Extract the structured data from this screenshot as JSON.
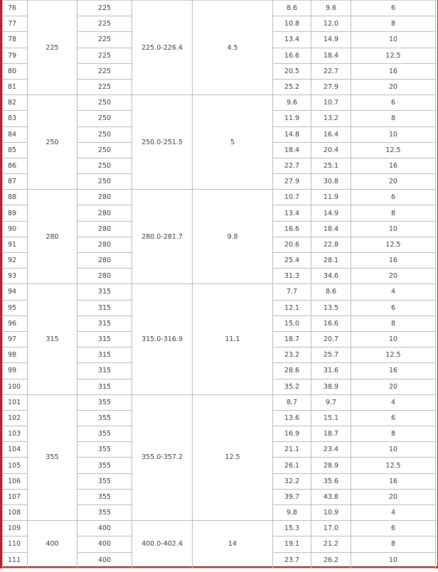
{
  "groups": [
    {
      "dn": "225",
      "range": "225.0-226.4",
      "col5": "4.5",
      "rows": [
        {
          "no": "76",
          "dn": "225",
          "a": "8.6",
          "b": "9.6",
          "c": "6"
        },
        {
          "no": "77",
          "dn": "225",
          "a": "10.8",
          "b": "12.0",
          "c": "8"
        },
        {
          "no": "78",
          "dn": "225",
          "a": "13.4",
          "b": "14.9",
          "c": "10"
        },
        {
          "no": "79",
          "dn": "225",
          "a": "16.6",
          "b": "18.4",
          "c": "12.5"
        },
        {
          "no": "80",
          "dn": "225",
          "a": "20.5",
          "b": "22.7",
          "c": "16"
        },
        {
          "no": "81",
          "dn": "225",
          "a": "25.2",
          "b": "27.9",
          "c": "20"
        }
      ]
    },
    {
      "dn": "250",
      "range": "250.0-251.5",
      "col5": "5",
      "rows": [
        {
          "no": "82",
          "dn": "250",
          "a": "9.6",
          "b": "10.7",
          "c": "6"
        },
        {
          "no": "83",
          "dn": "250",
          "a": "11.9",
          "b": "13.2",
          "c": "8"
        },
        {
          "no": "84",
          "dn": "250",
          "a": "14.8",
          "b": "16.4",
          "c": "10"
        },
        {
          "no": "85",
          "dn": "250",
          "a": "18.4",
          "b": "20.4",
          "c": "12.5"
        },
        {
          "no": "86",
          "dn": "250",
          "a": "22.7",
          "b": "25.1",
          "c": "16"
        },
        {
          "no": "87",
          "dn": "250",
          "a": "27.9",
          "b": "30.8",
          "c": "20"
        }
      ]
    },
    {
      "dn": "280",
      "range": "280.0-281.7",
      "col5": "9.8",
      "rows": [
        {
          "no": "88",
          "dn": "280",
          "a": "10.7",
          "b": "11.9",
          "c": "6"
        },
        {
          "no": "89",
          "dn": "280",
          "a": "13.4",
          "b": "14.9",
          "c": "8"
        },
        {
          "no": "90",
          "dn": "280",
          "a": "16.6",
          "b": "18.4",
          "c": "10"
        },
        {
          "no": "91",
          "dn": "280",
          "a": "20.6",
          "b": "22.8",
          "c": "12.5"
        },
        {
          "no": "92",
          "dn": "280",
          "a": "25.4",
          "b": "28.1",
          "c": "16"
        },
        {
          "no": "93",
          "dn": "280",
          "a": "31.3",
          "b": "34.6",
          "c": "20"
        }
      ]
    },
    {
      "dn": "315",
      "range": "315.0-316.9",
      "col5": "11.1",
      "rows": [
        {
          "no": "94",
          "dn": "315",
          "a": "7.7",
          "b": "8.6",
          "c": "4"
        },
        {
          "no": "95",
          "dn": "315",
          "a": "12.1",
          "b": "13.5",
          "c": "6"
        },
        {
          "no": "96",
          "dn": "315",
          "a": "15.0",
          "b": "16.6",
          "c": "8"
        },
        {
          "no": "97",
          "dn": "315",
          "a": "18.7",
          "b": "20.7",
          "c": "10"
        },
        {
          "no": "98",
          "dn": "315",
          "a": "23.2",
          "b": "25.7",
          "c": "12.5"
        },
        {
          "no": "99",
          "dn": "315",
          "a": "28.6",
          "b": "31.6",
          "c": "16"
        },
        {
          "no": "100",
          "dn": "315",
          "a": "35.2",
          "b": "38.9",
          "c": "20"
        }
      ]
    },
    {
      "dn": "355",
      "range": "355.0-357.2",
      "col5": "12.5",
      "rows": [
        {
          "no": "101",
          "dn": "355",
          "a": "8.7",
          "b": "9.7",
          "c": "4"
        },
        {
          "no": "102",
          "dn": "355",
          "a": "13.6",
          "b": "15.1",
          "c": "6"
        },
        {
          "no": "103",
          "dn": "355",
          "a": "16.9",
          "b": "18.7",
          "c": "8"
        },
        {
          "no": "104",
          "dn": "355",
          "a": "21.1",
          "b": "23.4",
          "c": "10"
        },
        {
          "no": "105",
          "dn": "355",
          "a": "26.1",
          "b": "28.9",
          "c": "12.5"
        },
        {
          "no": "106",
          "dn": "355",
          "a": "32.2",
          "b": "35.6",
          "c": "16"
        },
        {
          "no": "107",
          "dn": "355",
          "a": "39.7",
          "b": "43.8",
          "c": "20"
        },
        {
          "no": "108",
          "dn": "355",
          "a": "9.8",
          "b": "10.9",
          "c": "4"
        }
      ]
    },
    {
      "dn": "400",
      "range": "400.0-402.4",
      "col5": "14",
      "rows": [
        {
          "no": "109",
          "dn": "400",
          "a": "15.3",
          "b": "17.0",
          "c": "6"
        },
        {
          "no": "110",
          "dn": "400",
          "a": "19.1",
          "b": "21.2",
          "c": "8"
        },
        {
          "no": "111",
          "dn": "400",
          "a": "23.7",
          "b": "26.2",
          "c": "10"
        }
      ]
    }
  ]
}
